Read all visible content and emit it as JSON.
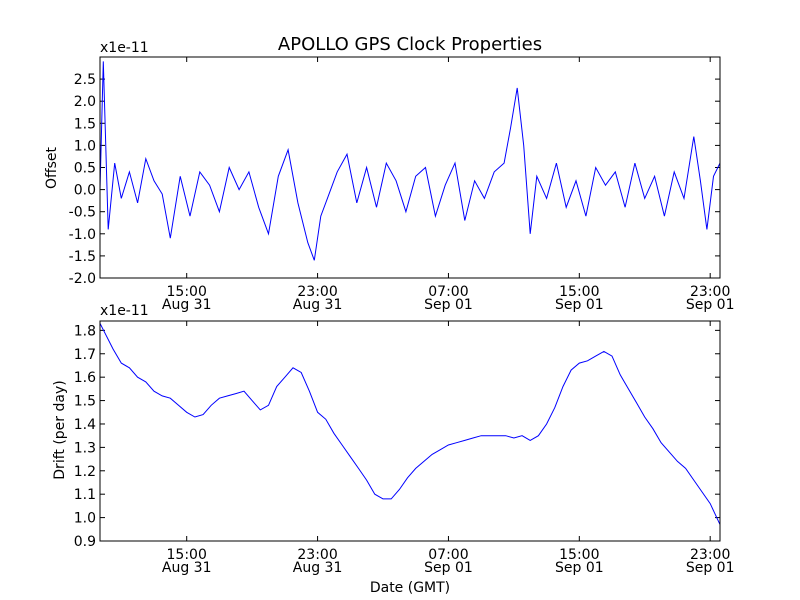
{
  "chart_data": [
    {
      "type": "line",
      "title": "APOLLO GPS Clock Properties",
      "ylabel": "Offset",
      "xlabel": "",
      "offset_text": "x1e-11",
      "x_ticks": [
        {
          "x": 15,
          "line1": "15:00",
          "line2": "Aug 31"
        },
        {
          "x": 23,
          "line1": "23:00",
          "line2": "Aug 31"
        },
        {
          "x": 31,
          "line1": "07:00",
          "line2": "Sep 01"
        },
        {
          "x": 39,
          "line1": "15:00",
          "line2": "Sep 01"
        },
        {
          "x": 47,
          "line1": "23:00",
          "line2": "Sep 01"
        }
      ],
      "xlim": [
        9.7,
        47.6
      ],
      "ylim": [
        -2.0,
        3.0
      ],
      "y_ticks": [
        "-2.0",
        "-1.5",
        "-1.0",
        "-0.5",
        "0.0",
        "0.5",
        "1.0",
        "1.5",
        "2.0",
        "2.5"
      ],
      "y_tick_values": [
        -2.0,
        -1.5,
        -1.0,
        -0.5,
        0.0,
        0.5,
        1.0,
        1.5,
        2.0,
        2.5
      ],
      "series": [
        {
          "color": "#0000ff",
          "x": [
            9.7,
            9.9,
            10.2,
            10.6,
            11.0,
            11.5,
            12.0,
            12.5,
            13.0,
            13.5,
            14.0,
            14.6,
            15.2,
            15.8,
            16.4,
            17.0,
            17.6,
            18.2,
            18.8,
            19.4,
            20.0,
            20.6,
            21.2,
            21.8,
            22.4,
            22.8,
            23.2,
            23.6,
            24.2,
            24.8,
            25.4,
            26.0,
            26.6,
            27.2,
            27.8,
            28.4,
            29.0,
            29.6,
            30.2,
            30.8,
            31.4,
            32.0,
            32.6,
            33.2,
            33.8,
            34.4,
            34.8,
            35.2,
            35.6,
            36.0,
            36.4,
            37.0,
            37.6,
            38.2,
            38.8,
            39.4,
            40.0,
            40.6,
            41.2,
            41.8,
            42.4,
            43.0,
            43.6,
            44.2,
            44.8,
            45.4,
            46.0,
            46.4,
            46.8,
            47.2,
            47.6
          ],
          "y": [
            0.0,
            2.9,
            -0.9,
            0.6,
            -0.2,
            0.4,
            -0.3,
            0.7,
            0.2,
            -0.1,
            -1.1,
            0.3,
            -0.6,
            0.4,
            0.1,
            -0.5,
            0.5,
            0.0,
            0.4,
            -0.4,
            -1.0,
            0.3,
            0.9,
            -0.3,
            -1.2,
            -1.6,
            -0.6,
            -0.2,
            0.4,
            0.8,
            -0.3,
            0.5,
            -0.4,
            0.6,
            0.2,
            -0.5,
            0.3,
            0.5,
            -0.6,
            0.1,
            0.6,
            -0.7,
            0.2,
            -0.2,
            0.4,
            0.6,
            1.4,
            2.3,
            1.0,
            -1.0,
            0.3,
            -0.2,
            0.6,
            -0.4,
            0.2,
            -0.6,
            0.5,
            0.1,
            0.4,
            -0.4,
            0.6,
            -0.2,
            0.3,
            -0.6,
            0.4,
            -0.2,
            1.2,
            0.2,
            -0.9,
            0.3,
            0.6
          ]
        }
      ]
    },
    {
      "type": "line",
      "title": "",
      "ylabel": "Drift (per day)",
      "xlabel": "Date (GMT)",
      "offset_text": "x1e-11",
      "x_ticks": [
        {
          "x": 15,
          "line1": "15:00",
          "line2": "Aug 31"
        },
        {
          "x": 23,
          "line1": "23:00",
          "line2": "Aug 31"
        },
        {
          "x": 31,
          "line1": "07:00",
          "line2": "Sep 01"
        },
        {
          "x": 39,
          "line1": "15:00",
          "line2": "Sep 01"
        },
        {
          "x": 47,
          "line1": "23:00",
          "line2": "Sep 01"
        }
      ],
      "xlim": [
        9.7,
        47.6
      ],
      "ylim": [
        0.9,
        1.84
      ],
      "y_ticks": [
        "0.9",
        "1.0",
        "1.1",
        "1.2",
        "1.3",
        "1.4",
        "1.5",
        "1.6",
        "1.7",
        "1.8"
      ],
      "y_tick_values": [
        0.9,
        1.0,
        1.1,
        1.2,
        1.3,
        1.4,
        1.5,
        1.6,
        1.7,
        1.8
      ],
      "series": [
        {
          "color": "#0000ff",
          "x": [
            9.7,
            10.5,
            11.0,
            11.5,
            12.0,
            12.5,
            13.0,
            13.5,
            14.0,
            14.5,
            15.0,
            15.5,
            16.0,
            16.5,
            17.0,
            17.5,
            18.0,
            18.5,
            19.0,
            19.5,
            20.0,
            20.5,
            21.0,
            21.5,
            22.0,
            22.5,
            23.0,
            23.5,
            24.0,
            24.5,
            25.0,
            25.5,
            26.0,
            26.5,
            27.0,
            27.5,
            28.0,
            28.5,
            29.0,
            29.5,
            30.0,
            30.5,
            31.0,
            31.5,
            32.0,
            32.5,
            33.0,
            33.5,
            34.0,
            34.5,
            35.0,
            35.5,
            36.0,
            36.5,
            37.0,
            37.5,
            38.0,
            38.5,
            39.0,
            39.5,
            40.0,
            40.5,
            41.0,
            41.5,
            42.0,
            42.5,
            43.0,
            43.5,
            44.0,
            44.5,
            45.0,
            45.5,
            46.0,
            46.5,
            47.0,
            47.6
          ],
          "y": [
            1.83,
            1.72,
            1.66,
            1.64,
            1.6,
            1.58,
            1.54,
            1.52,
            1.51,
            1.48,
            1.45,
            1.43,
            1.44,
            1.48,
            1.51,
            1.52,
            1.53,
            1.54,
            1.5,
            1.46,
            1.48,
            1.56,
            1.6,
            1.64,
            1.62,
            1.54,
            1.45,
            1.42,
            1.36,
            1.31,
            1.26,
            1.21,
            1.16,
            1.1,
            1.08,
            1.08,
            1.12,
            1.17,
            1.21,
            1.24,
            1.27,
            1.29,
            1.31,
            1.32,
            1.33,
            1.34,
            1.35,
            1.35,
            1.35,
            1.35,
            1.34,
            1.35,
            1.33,
            1.35,
            1.4,
            1.47,
            1.56,
            1.63,
            1.66,
            1.67,
            1.69,
            1.71,
            1.69,
            1.61,
            1.55,
            1.49,
            1.43,
            1.38,
            1.32,
            1.28,
            1.24,
            1.21,
            1.16,
            1.11,
            1.06,
            0.97
          ]
        }
      ]
    }
  ]
}
